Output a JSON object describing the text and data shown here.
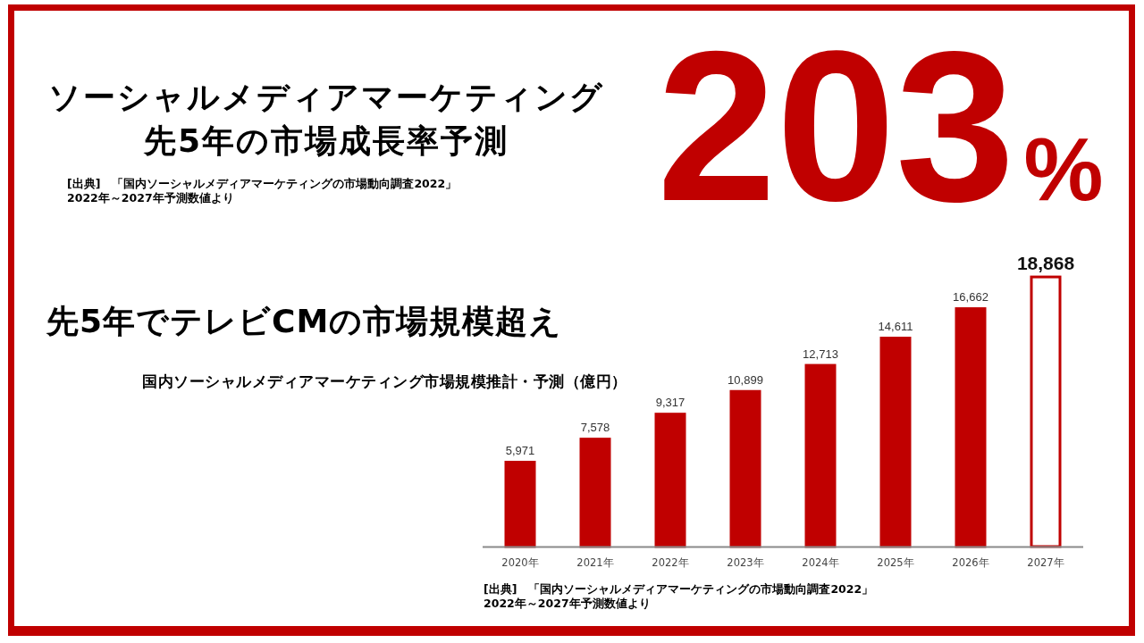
{
  "chart_data": {
    "type": "bar",
    "title": "ソーシャルメディアマーケティング先5年の市場成長率予測",
    "subtitle": "先5年でテレビCMの市場規模超え",
    "categories": [
      "2020年",
      "2021年",
      "2022年",
      "2023年",
      "2024年",
      "2025年",
      "2026年",
      "2027年"
    ],
    "values": [
      5971,
      7578,
      9317,
      10899,
      12713,
      14611,
      16662,
      18868
    ],
    "value_labels": [
      "5,971",
      "7,578",
      "9,317",
      "10,899",
      "12,713",
      "14,611",
      "16,662",
      "18,868"
    ],
    "color": "#c00000",
    "colors": [
      "#c00000",
      "#c00000",
      "#c00000",
      "#c00000",
      "#c00000",
      "#c00000",
      "#c00000",
      "#ffffff"
    ],
    "annotations": [
      "203%",
      "国内ソーシャルメディアマーケティング市場規模推計・予測（億円）",
      "[出典]　「国内ソーシャルメディアマーケティングの市場動向調査2022」",
      "2022年～2027年予測数値より",
      "[出典]　「国内ソーシャルメディアマーケティングの市場動向調査2022」",
      "2022年～2027年予測数値より"
    ]
  }
}
